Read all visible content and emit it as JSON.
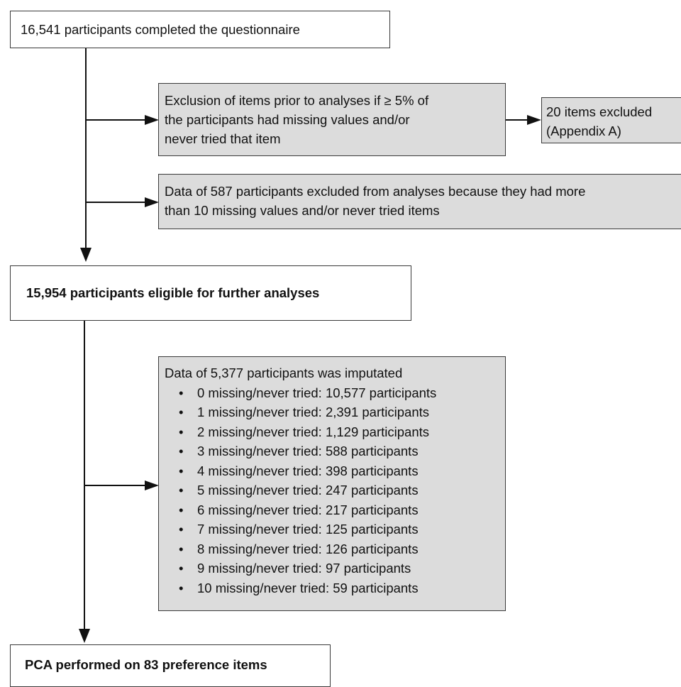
{
  "flow": {
    "box1": "16,541 participants completed the questionnaire",
    "box2_lines": [
      "Exclusion of items prior to analyses if ≥ 5% of",
      "the participants had missing values and/or",
      "never tried that item"
    ],
    "box3_lines": [
      "20 items excluded",
      "(Appendix A)"
    ],
    "box4_lines": [
      "Data of 587 participants excluded from analyses because they had more",
      "than 10 missing values and/or never tried items"
    ],
    "box5": "15,954 participants eligible for further analyses",
    "box6_title": "Data of 5,377 participants was imputated",
    "box6_items": [
      "0 missing/never tried: 10,577 participants",
      "1 missing/never tried: 2,391 participants",
      "2 missing/never tried: 1,129 participants",
      "3 missing/never tried: 588 participants",
      "4 missing/never tried: 398 participants",
      "5 missing/never tried: 247 participants",
      "6 missing/never tried: 217 participants",
      "7 missing/never tried: 125 participants",
      "8 missing/never tried: 126 participants",
      "9 missing/never tried: 97 participants",
      "10 missing/never tried: 59 participants"
    ],
    "box7": "PCA performed on 83 preference items"
  }
}
